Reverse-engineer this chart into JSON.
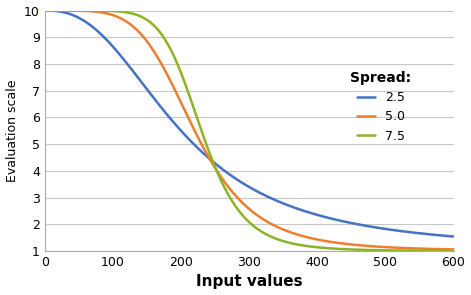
{
  "title": "",
  "xlabel": "Input values",
  "ylabel": "Evaluation scale",
  "xlim": [
    0,
    600
  ],
  "ylim": [
    1,
    10
  ],
  "yticks": [
    1,
    2,
    3,
    4,
    5,
    6,
    7,
    8,
    9,
    10
  ],
  "xticks": [
    0,
    100,
    200,
    300,
    400,
    500,
    600
  ],
  "series": [
    {
      "spread": 2.5,
      "midpoint": 200,
      "color": "#4472C4",
      "label": "2.5"
    },
    {
      "spread": 5.0,
      "midpoint": 220,
      "color": "#ED7D31",
      "label": "5.0"
    },
    {
      "spread": 7.5,
      "midpoint": 230,
      "color": "#8CB526",
      "label": "7.5"
    }
  ],
  "ymin": 1,
  "ymax": 10,
  "legend_title": "Spread:",
  "background_color": "#FFFFFF",
  "grid_color": "#C8C8C8",
  "figsize": [
    4.71,
    2.95
  ],
  "dpi": 100
}
